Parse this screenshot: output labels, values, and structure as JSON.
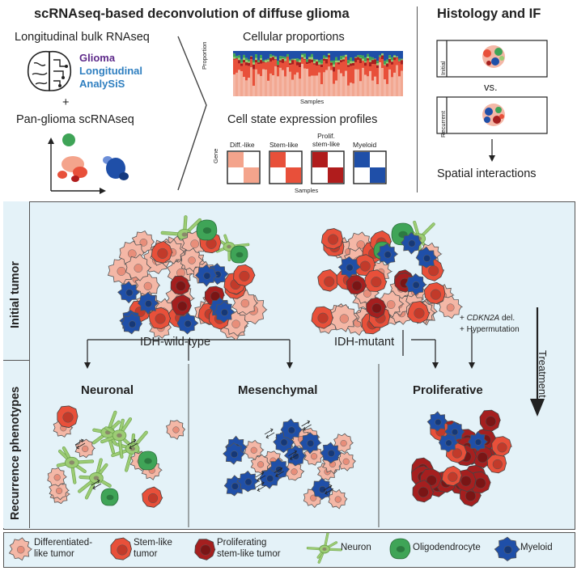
{
  "header": {
    "title": "scRNAseq-based deconvolution of diffuse glioma",
    "histology_title": "Histology and IF"
  },
  "inputs": {
    "bulk_label": "Longitudinal bulk RNAseq",
    "glass_line1": "Glioma",
    "glass_line2": "Longitudinal",
    "glass_line3": "AnalySiS",
    "plus": "+",
    "sc_label": "Pan-glioma scRNAseq"
  },
  "outputs": {
    "proportions_title": "Cellular proportions",
    "proportions_ylabel": "Proportion",
    "proportions_xlabel": "Samples",
    "profiles_title": "Cell state expression profiles",
    "profiles_ylabel": "Gene",
    "profiles_xlabel": "Samples",
    "profiles": [
      {
        "label": "Diff.-like",
        "color": "#f4a48c"
      },
      {
        "label": "Stem-like",
        "color": "#e8503a"
      },
      {
        "label_line1": "Prolif.",
        "label_line2": "stem-like",
        "color": "#b01c1c"
      },
      {
        "label": "Myeloid",
        "color": "#1f4fa8"
      }
    ]
  },
  "histology": {
    "initial_label": "Initial",
    "vs_label": "vs.",
    "recurrent_label": "Recurrent",
    "spatial_label": "Spatial interactions"
  },
  "main": {
    "row_initial": "Initial tumor",
    "row_recurrence": "Recurrence phenotypes",
    "idh_wt": "IDH-wild-type",
    "idh_mut": "IDH-mutant",
    "cdkn_plus": "+",
    "cdkn_gene": "CDKN2A",
    "cdkn_rest": "del.",
    "hypermutation": "+ Hypermutation",
    "treatment": "Treatment",
    "neuronal": "Neuronal",
    "mesenchymal": "Mesenchymal",
    "proliferative": "Proliferative"
  },
  "legend": {
    "diff_line1": "Differentiated-",
    "diff_line2": "like tumor",
    "stem_line1": "Stem-like",
    "stem_line2": "tumor",
    "prolif_line1": "Proliferating",
    "prolif_line2": "stem-like tumor",
    "neuron": "Neuron",
    "oligo": "Oligodendrocyte",
    "myeloid": "Myeloid"
  },
  "colors": {
    "diff": "#f4b7a6",
    "stem": "#e8503a",
    "prolif": "#a51f1f",
    "neuron": "#9ccc74",
    "oligo": "#3fa457",
    "myeloid": "#1f4fa8",
    "panel_bg": "#e4f2f8"
  }
}
